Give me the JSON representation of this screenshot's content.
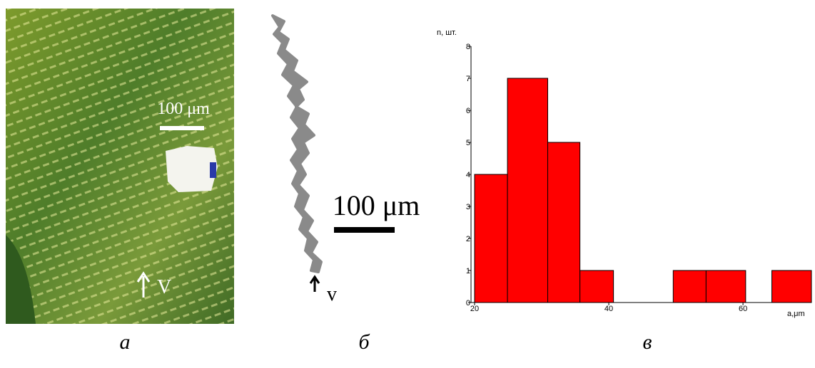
{
  "panels": [
    {
      "scale_label": "100 μm",
      "marker": "V",
      "caption": "а"
    },
    {
      "scale_label": "100 μm",
      "marker": "v",
      "caption": "б"
    }
  ],
  "chart_data": {
    "type": "histogram",
    "caption": "в",
    "y_label": "n, шт.",
    "x_label": "a,μm",
    "bins": [
      20,
      24.9,
      30.9,
      35.7,
      40.7,
      49.6,
      54.5,
      60.4,
      64.3,
      70.2
    ],
    "counts": [
      4,
      7,
      5,
      1,
      0,
      1,
      1,
      0,
      1
    ],
    "color": "#ff0000",
    "xlim": [
      20,
      70.2
    ],
    "xticks": [
      20,
      40,
      60
    ],
    "ylim": [
      0,
      8
    ],
    "yticks": [
      0,
      1,
      2,
      3,
      4,
      5,
      6,
      7,
      8
    ]
  }
}
